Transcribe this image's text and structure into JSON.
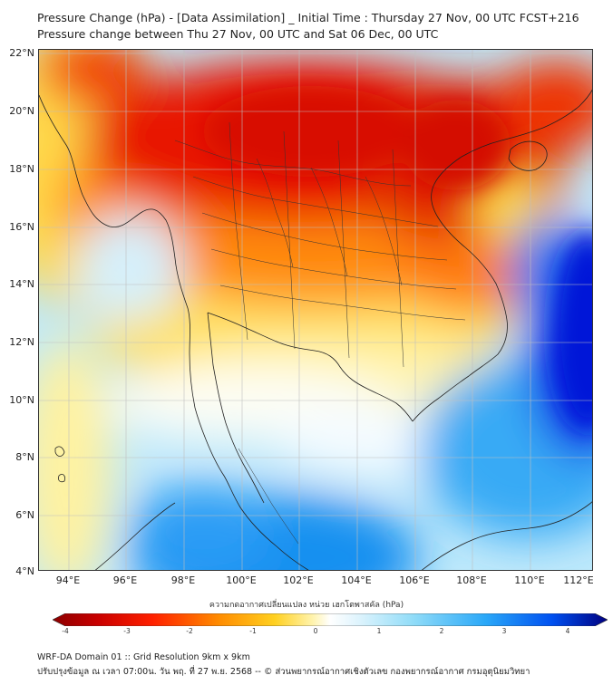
{
  "title": {
    "line1": "Pressure Change (hPa) - [Data Assimilation] _ Initial Time : Thursday 27 Nov, 00 UTC FCST+216",
    "line2": "Pressure change between Thu 27 Nov, 00 UTC and Sat 06 Dec, 00 UTC"
  },
  "map": {
    "lat_labels": [
      "22°N",
      "20°N",
      "18°N",
      "16°N",
      "14°N",
      "12°N",
      "10°N",
      "8°N",
      "6°N",
      "4°N"
    ],
    "lon_labels": [
      "94°E",
      "96°E",
      "98°E",
      "100°E",
      "102°E",
      "104°E",
      "106°E",
      "108°E",
      "110°E",
      "112°E"
    ],
    "lat_range": [
      4,
      22
    ],
    "lon_range": [
      93,
      112.2
    ],
    "field_colors": {
      "strong_negative": "#c80000",
      "negative": "#ff6000",
      "weak_negative": "#ffe850",
      "neutral": "#ffffff",
      "weak_positive": "#a8e4fa",
      "positive": "#2aaeff",
      "strong_positive": "#0020e0"
    }
  },
  "colorbar": {
    "title": "ความกดอากาศเปลี่ยนแปลง หน่วย เฮกโตพาสคัล (hPa)",
    "ticks": [
      "-4",
      "-3",
      "-2",
      "-1",
      "0",
      "1",
      "2",
      "3",
      "4"
    ]
  },
  "footer": {
    "line1": "WRF-DA Domain 01 :: Grid Resolution 9km x 9km",
    "line2": "ปรับปรุงข้อมูล ณ เวลา 07:00น. วัน พฤ. ที่ 27 พ.ย. 2568 -- © ส่วนพยากรณ์อากาศเชิงตัวเลข กองพยากรณ์อากาศ กรมอุตุนิยมวิทยา"
  }
}
